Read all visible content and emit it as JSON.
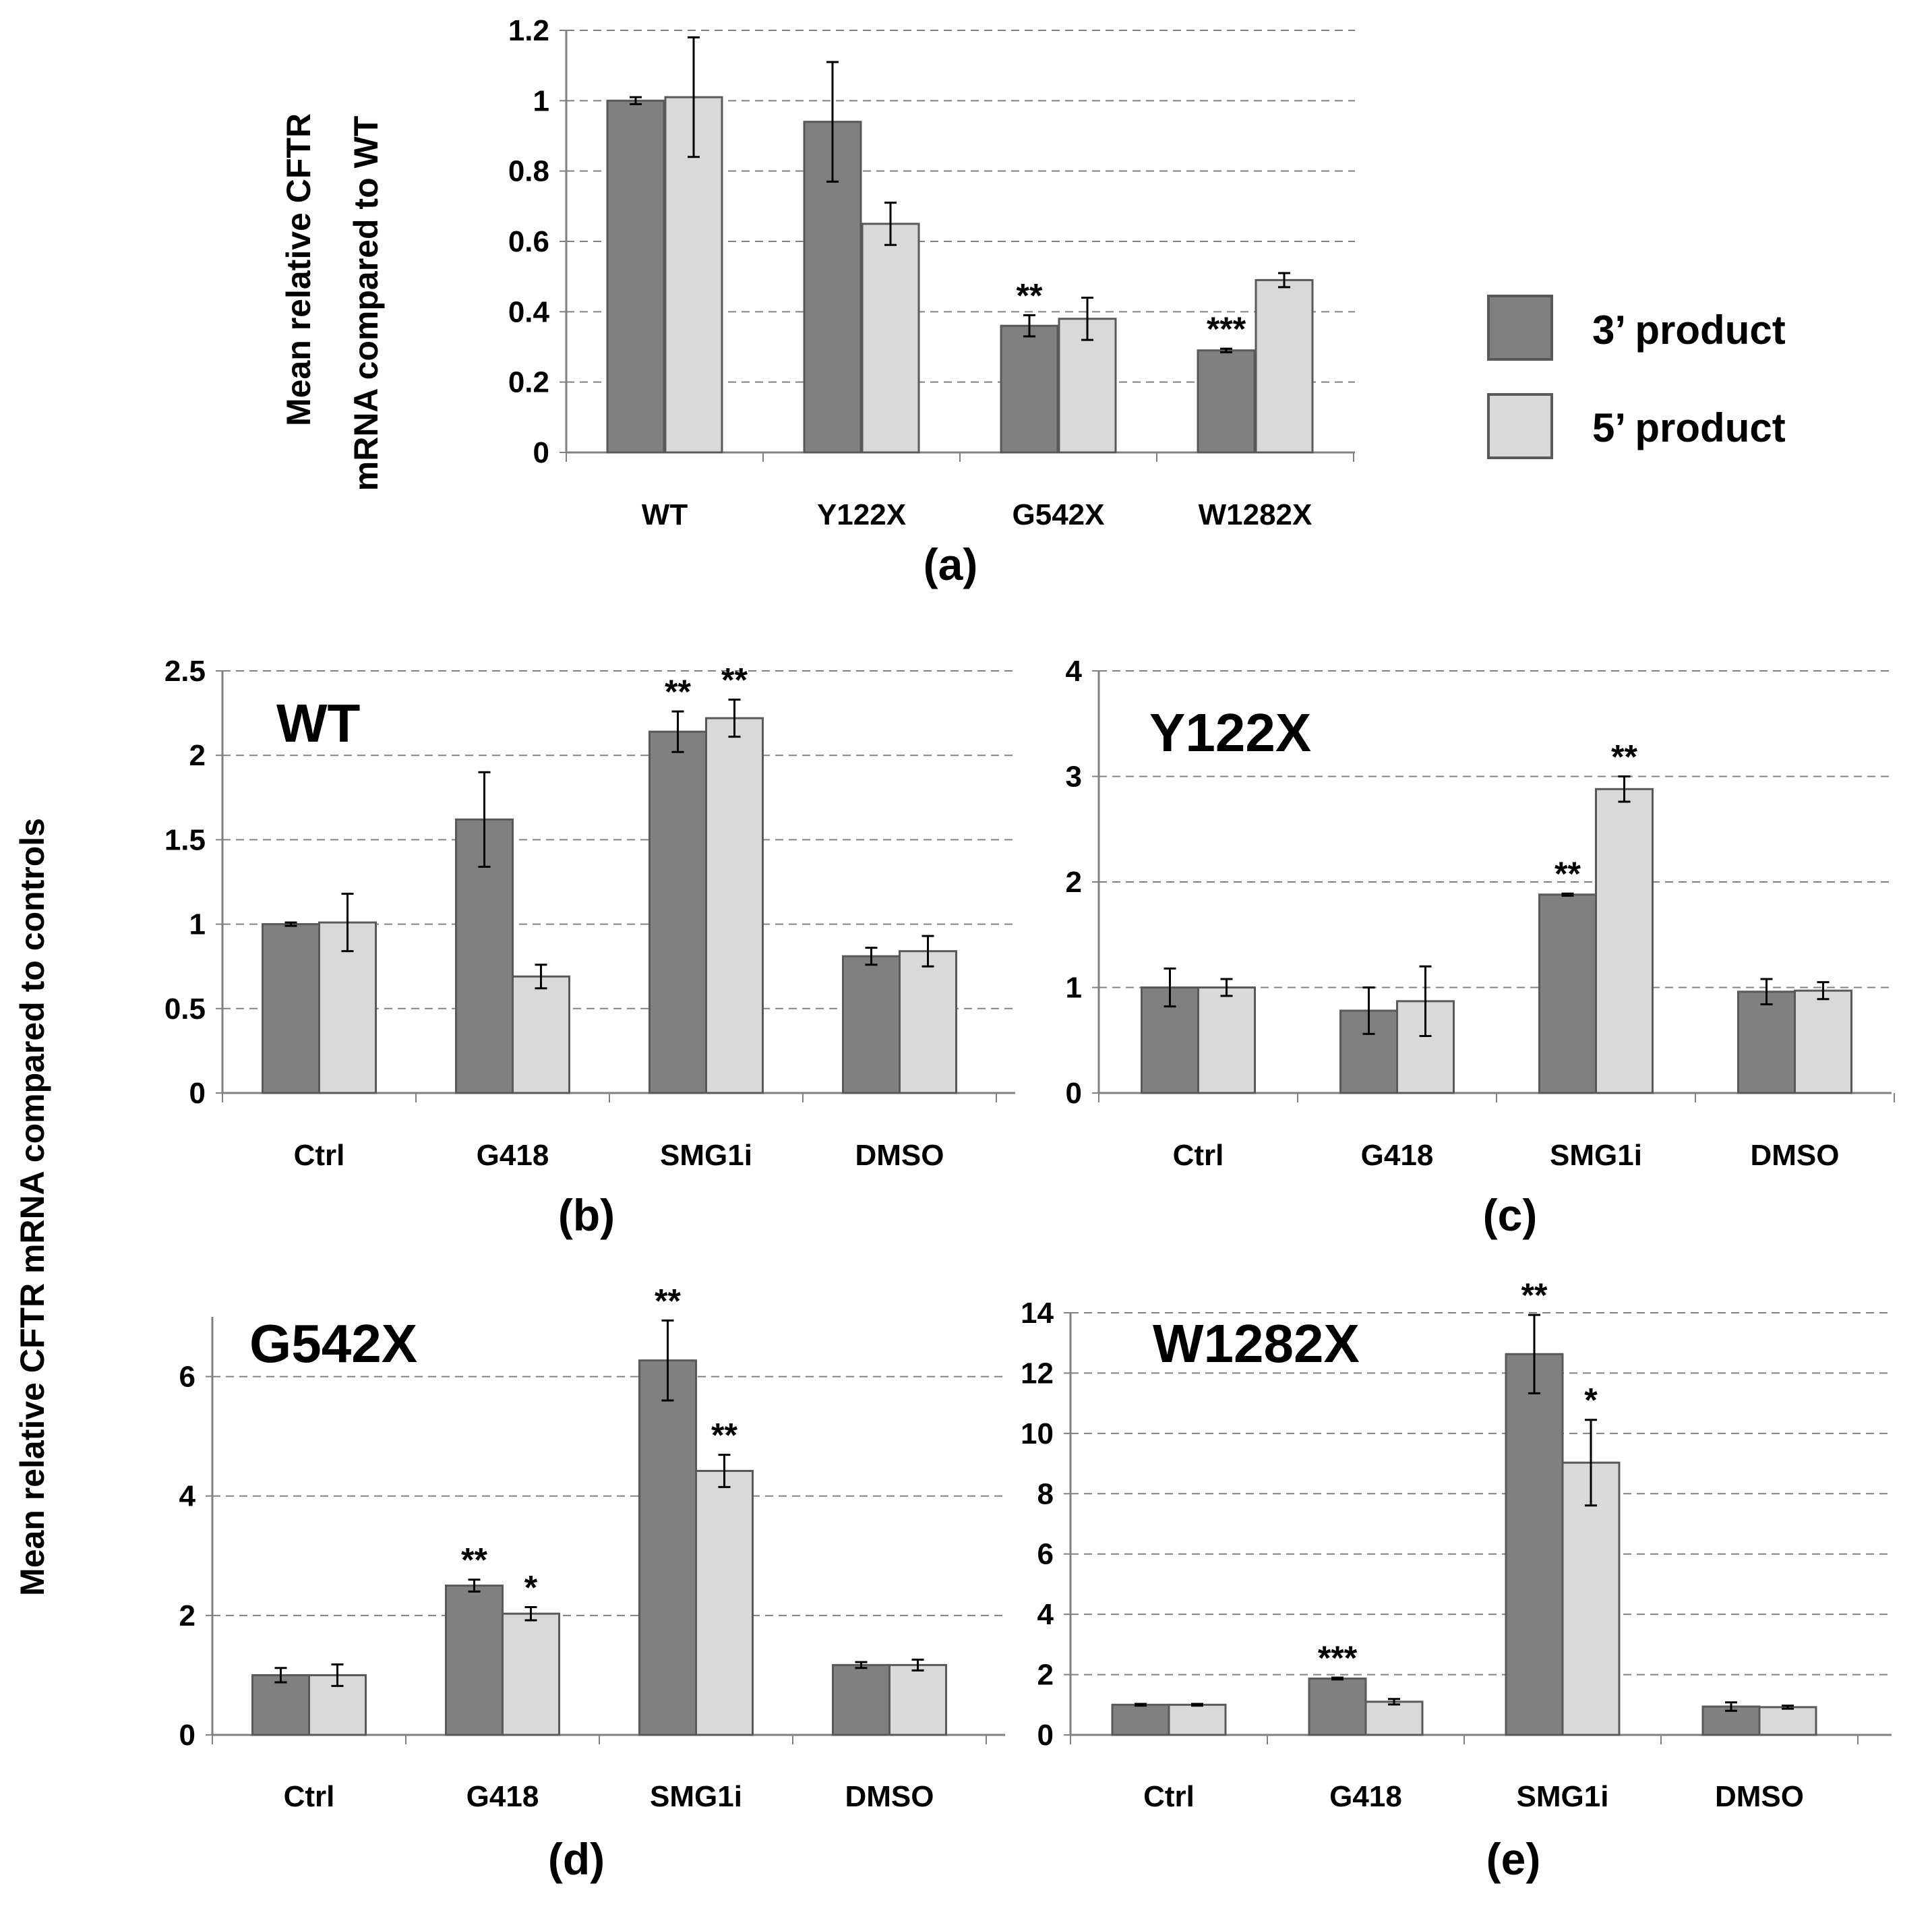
{
  "colors": {
    "product3": "#808080",
    "product5": "#d9d9d9",
    "outline": "#595959",
    "grid": "#808080"
  },
  "legend": {
    "items": [
      {
        "name": "3’ product",
        "color": "#808080"
      },
      {
        "name": "5’ product",
        "color": "#d9d9d9"
      }
    ]
  },
  "shared_ylabel": "Mean relative CFTR mRNA compared to controls",
  "chart_data": [
    {
      "type": "bar",
      "panel": "(a)",
      "title": "",
      "ylabel": "Mean relative CFTR mRNA compared to WT",
      "ylim": [
        0,
        1.2
      ],
      "yticks": [
        0,
        0.2,
        0.4,
        0.6,
        0.8,
        1,
        1.2
      ],
      "ytick_labels": [
        "0",
        "0.2",
        "0.4",
        "0.6",
        "0.8",
        "1",
        "1.2"
      ],
      "categories": [
        "WT",
        "Y122X",
        "G542X",
        "W1282X"
      ],
      "series": [
        {
          "name": "3’ product",
          "values": [
            1.0,
            0.94,
            0.36,
            0.29
          ],
          "errors": [
            0.01,
            0.17,
            0.03,
            0.005
          ],
          "significance": [
            "",
            "",
            "**",
            "***"
          ]
        },
        {
          "name": "5’ product",
          "values": [
            1.01,
            0.65,
            0.38,
            0.49
          ],
          "errors": [
            0.17,
            0.06,
            0.06,
            0.02
          ],
          "significance": [
            "",
            "",
            "",
            ""
          ]
        }
      ]
    },
    {
      "type": "bar",
      "panel": "(b)",
      "title": "WT",
      "ylim": [
        0,
        2.5
      ],
      "yticks": [
        0,
        0.5,
        1,
        1.5,
        2,
        2.5
      ],
      "ytick_labels": [
        "0",
        "0.5",
        "1",
        "1.5",
        "2",
        "2.5"
      ],
      "categories": [
        "Ctrl",
        "G418",
        "SMG1i",
        "DMSO"
      ],
      "series": [
        {
          "name": "3’ product",
          "values": [
            1.0,
            1.62,
            2.14,
            0.81
          ],
          "errors": [
            0.01,
            0.28,
            0.12,
            0.05
          ],
          "significance": [
            "",
            "",
            "**",
            ""
          ]
        },
        {
          "name": "5’ product",
          "values": [
            1.01,
            0.69,
            2.22,
            0.84
          ],
          "errors": [
            0.17,
            0.07,
            0.11,
            0.09
          ],
          "significance": [
            "",
            "",
            "**",
            ""
          ]
        }
      ]
    },
    {
      "type": "bar",
      "panel": "(c)",
      "title": "Y122X",
      "ylim": [
        0,
        4
      ],
      "yticks": [
        0,
        1,
        2,
        3,
        4
      ],
      "ytick_labels": [
        "0",
        "1",
        "2",
        "3",
        "4"
      ],
      "categories": [
        "Ctrl",
        "G418",
        "SMG1i",
        "DMSO"
      ],
      "series": [
        {
          "name": "3’ product",
          "values": [
            1.0,
            0.78,
            1.88,
            0.96
          ],
          "errors": [
            0.18,
            0.22,
            0.01,
            0.12
          ],
          "significance": [
            "",
            "",
            "**",
            ""
          ]
        },
        {
          "name": "5’ product",
          "values": [
            1.0,
            0.87,
            2.88,
            0.97
          ],
          "errors": [
            0.08,
            0.33,
            0.12,
            0.08
          ],
          "significance": [
            "",
            "",
            "**",
            ""
          ]
        }
      ]
    },
    {
      "type": "bar",
      "panel": "(d)",
      "title": "G542X",
      "ylim": [
        0,
        7
      ],
      "yticks": [
        0,
        2,
        4,
        6
      ],
      "ytick_labels": [
        "0",
        "2",
        "4",
        "6"
      ],
      "categories": [
        "Ctrl",
        "G418",
        "SMG1i",
        "DMSO"
      ],
      "series": [
        {
          "name": "3’ product",
          "values": [
            1.0,
            2.5,
            6.27,
            1.17
          ],
          "errors": [
            0.12,
            0.1,
            0.67,
            0.05
          ],
          "significance": [
            "",
            "**",
            "**",
            ""
          ]
        },
        {
          "name": "5’ product",
          "values": [
            1.0,
            2.03,
            4.42,
            1.17
          ],
          "errors": [
            0.18,
            0.11,
            0.27,
            0.09
          ],
          "significance": [
            "",
            "*",
            "**",
            ""
          ]
        }
      ]
    },
    {
      "type": "bar",
      "panel": "(e)",
      "title": "W1282X",
      "ylim": [
        0,
        14
      ],
      "yticks": [
        0,
        2,
        4,
        6,
        8,
        10,
        12,
        14
      ],
      "ytick_labels": [
        "0",
        "2",
        "4",
        "6",
        "8",
        "10",
        "12",
        "14"
      ],
      "categories": [
        "Ctrl",
        "G418",
        "SMG1i",
        "DMSO"
      ],
      "series": [
        {
          "name": "3’ product",
          "values": [
            1.0,
            1.87,
            12.63,
            0.94
          ],
          "errors": [
            0.03,
            0.03,
            1.3,
            0.14
          ],
          "significance": [
            "",
            "***",
            "**",
            ""
          ]
        },
        {
          "name": "5’ product",
          "values": [
            1.0,
            1.1,
            9.03,
            0.92
          ],
          "errors": [
            0.03,
            0.09,
            1.42,
            0.05
          ],
          "significance": [
            "",
            "",
            "*",
            ""
          ]
        }
      ]
    }
  ]
}
